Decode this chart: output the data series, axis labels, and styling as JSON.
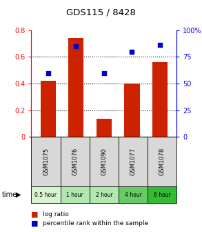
{
  "title": "GDS115 / 8428",
  "samples": [
    "GSM1075",
    "GSM1076",
    "GSM1090",
    "GSM1077",
    "GSM1078"
  ],
  "time_labels": [
    "0.5 hour",
    "1 hour",
    "2 hour",
    "4 hour",
    "6 hour"
  ],
  "time_colors": [
    "#d8f5d0",
    "#b0e8b0",
    "#b0e8b0",
    "#66cc66",
    "#33bb33"
  ],
  "log_ratio": [
    0.42,
    0.74,
    0.135,
    0.4,
    0.56
  ],
  "percentile_rank": [
    60,
    85,
    60,
    80,
    86
  ],
  "bar_color": "#cc2200",
  "dot_color": "#0000cc",
  "ylim_left": [
    0,
    0.8
  ],
  "ylim_right": [
    0,
    100
  ],
  "yticks_left": [
    0,
    0.2,
    0.4,
    0.6,
    0.8
  ],
  "ytick_labels_left": [
    "0",
    "0.2",
    "0.4",
    "0.6",
    "0.8"
  ],
  "yticks_right": [
    0,
    25,
    50,
    75,
    100
  ],
  "ytick_labels_right": [
    "0",
    "25",
    "50",
    "75",
    "100%"
  ],
  "sample_bg": "#d8d8d8",
  "bar_width": 0.55,
  "fig_width": 2.93,
  "fig_height": 3.36,
  "dpi": 100
}
